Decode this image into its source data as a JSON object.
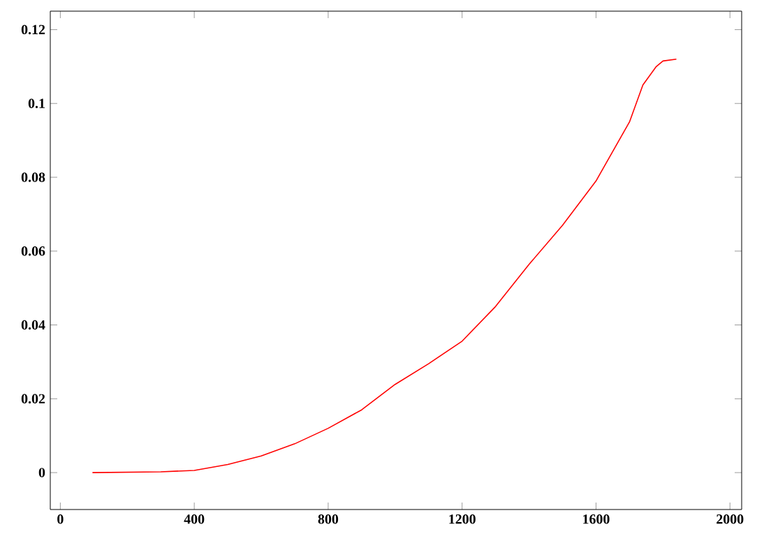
{
  "chart_data": {
    "type": "line",
    "xlim": [
      -30,
      2035
    ],
    "ylim": [
      -0.01,
      0.125
    ],
    "xticks": [
      0,
      400,
      800,
      1200,
      1600,
      2000
    ],
    "yticks": [
      0,
      0.02,
      0.04,
      0.06,
      0.08,
      0.1,
      0.12
    ],
    "grid": false,
    "x": [
      96,
      300,
      400,
      500,
      600,
      700,
      800,
      900,
      1000,
      1100,
      1200,
      1300,
      1400,
      1500,
      1600,
      1700,
      1740,
      1780,
      1800,
      1840
    ],
    "series": [
      {
        "color": "#ff0000",
        "values": [
          0,
          0.0002,
          0.0006,
          0.0022,
          0.0045,
          0.0078,
          0.012,
          0.017,
          0.0239,
          0.0295,
          0.0356,
          0.045,
          0.0564,
          0.067,
          0.079,
          0.095,
          0.105,
          0.11,
          0.1115,
          0.112
        ]
      }
    ]
  }
}
